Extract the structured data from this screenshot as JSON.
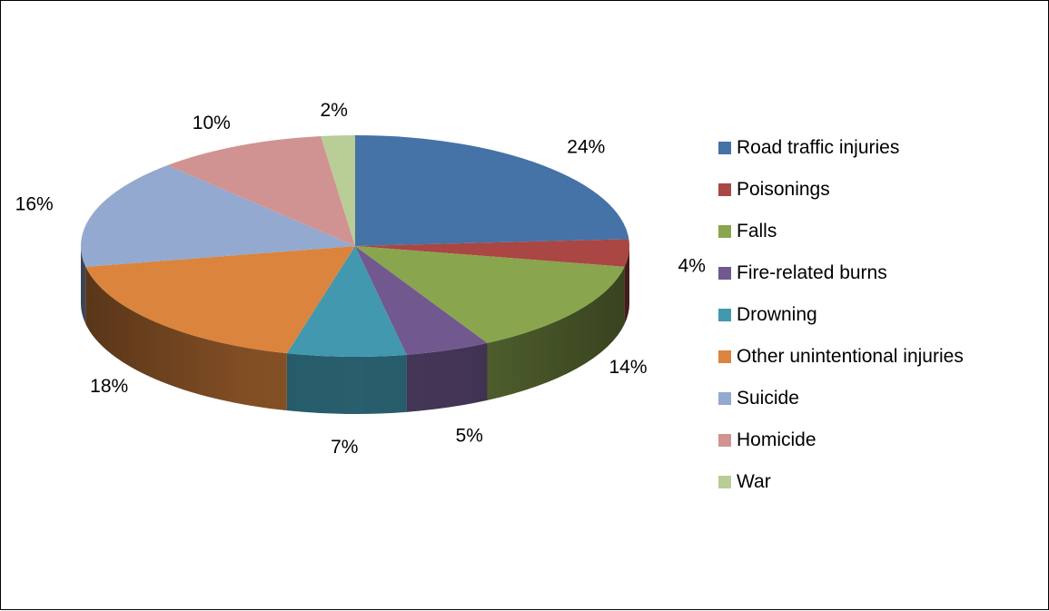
{
  "chart_data": {
    "type": "pie",
    "style": "3d-exploded-none",
    "title": "",
    "legend_position": "right",
    "slices": [
      {
        "label": "Road traffic injuries",
        "value": 24,
        "value_label": "24%",
        "color": "#4572A7"
      },
      {
        "label": "Poisonings",
        "value": 4,
        "value_label": "4%",
        "color": "#AA4643"
      },
      {
        "label": "Falls",
        "value": 14,
        "value_label": "14%",
        "color": "#89A54E"
      },
      {
        "label": "Fire-related burns",
        "value": 5,
        "value_label": "5%",
        "color": "#71588F"
      },
      {
        "label": "Drowning",
        "value": 7,
        "value_label": "7%",
        "color": "#4198AF"
      },
      {
        "label": "Other unintentional injuries",
        "value": 18,
        "value_label": "18%",
        "color": "#DB843D"
      },
      {
        "label": "Suicide",
        "value": 16,
        "value_label": "16%",
        "color": "#93A9CF"
      },
      {
        "label": "Homicide",
        "value": 10,
        "value_label": "10%",
        "color": "#D19392"
      },
      {
        "label": "War",
        "value": 2,
        "value_label": "2%",
        "color": "#B9CD96"
      }
    ]
  }
}
